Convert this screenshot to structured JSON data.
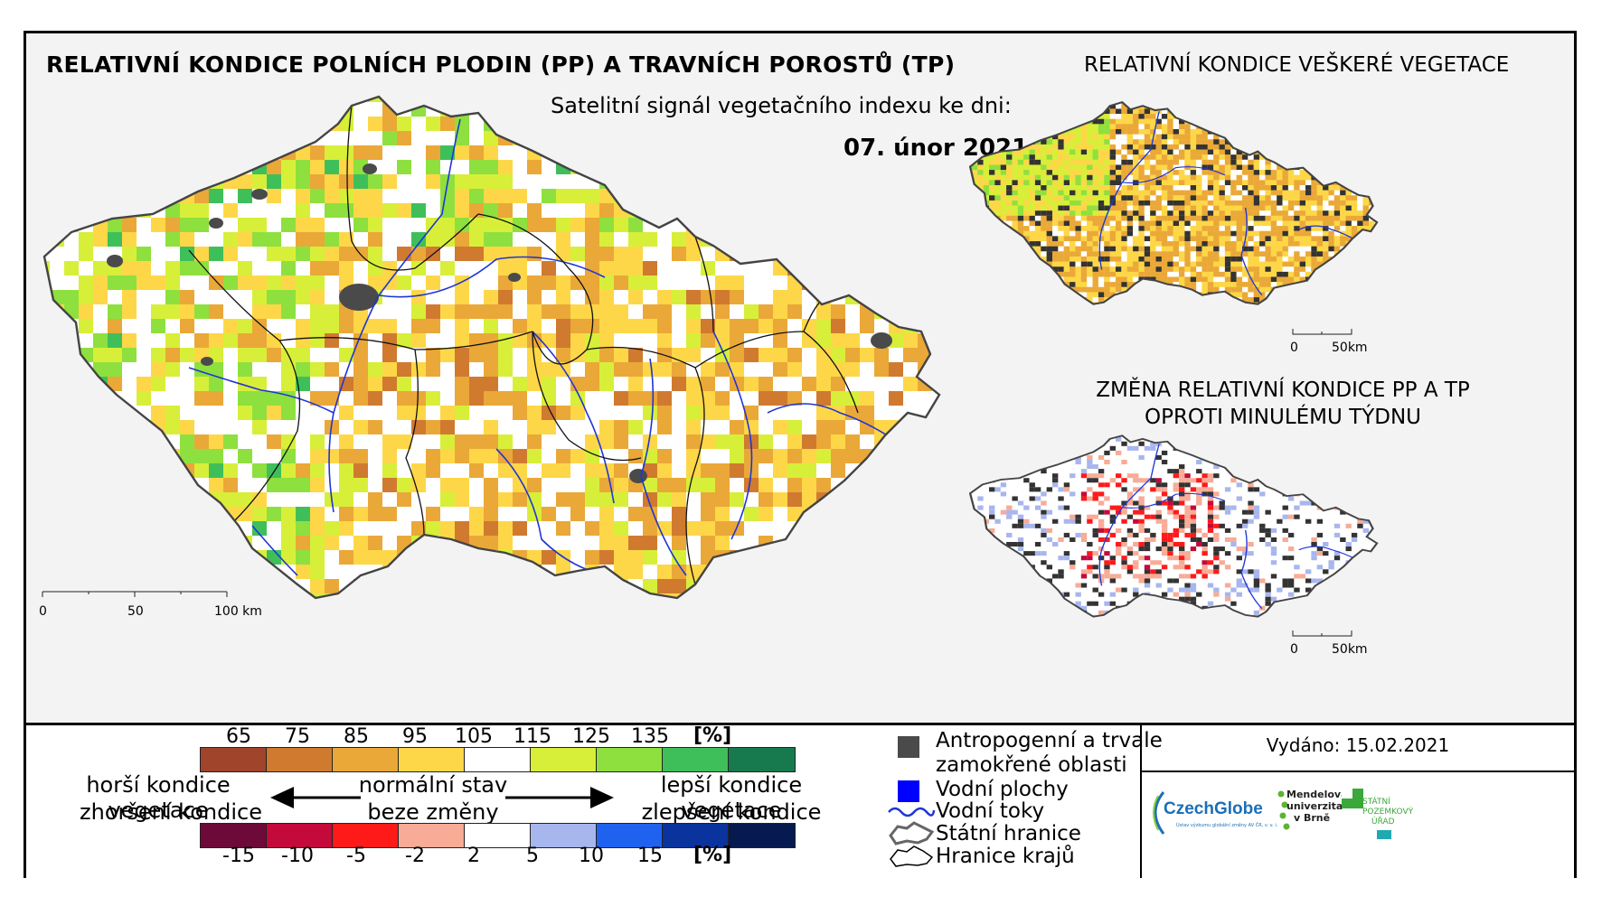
{
  "header": {
    "main_title": "RELATIVNÍ KONDICE POLNÍCH PLODIN (PP) A TRAVNÍCH POROSTŮ (TP)",
    "subtitle": "Satelitní signál vegetačního indexu ke dni:",
    "date": "07. únor 2021",
    "right_title": "RELATIVNÍ KONDICE VEŠKERÉ VEGETACE",
    "change_title_line1": "ZMĚNA RELATIVNÍ KONDICE PP A TP",
    "change_title_line2": "OPROTI MINULÉMU TÝDNU"
  },
  "main_map": {
    "scale": {
      "zero": "0",
      "mid": "50",
      "end": "100 km"
    }
  },
  "small_maps": {
    "scale": {
      "zero": "0",
      "end": "50km"
    }
  },
  "legend": {
    "condition_scale": {
      "ticks": [
        "65",
        "75",
        "85",
        "95",
        "105",
        "115",
        "125",
        "135"
      ],
      "unit": "[%]",
      "colors": [
        "#a0442c",
        "#d07a30",
        "#eaa838",
        "#fdd748",
        "#ffffff",
        "#d7ef39",
        "#8ee03e",
        "#3fbf5a",
        "#177a4e"
      ]
    },
    "change_scale": {
      "ticks": [
        "-15",
        "-10",
        "-5",
        "-2",
        "2",
        "5",
        "10",
        "15"
      ],
      "unit": "[%]",
      "colors": [
        "#6e0a3a",
        "#c40a3a",
        "#ff1a1a",
        "#f8ab96",
        "#ffffff",
        "#a8b6ee",
        "#1f62f0",
        "#0b339e",
        "#071a4f"
      ]
    },
    "captions": {
      "worse_1": "horší kondice vegetace",
      "worse_2": "zhoršení kondice",
      "normal_1": "normální stav",
      "normal_2": "beze změny",
      "better_1": "lepší kondice vegetace",
      "better_2": "zlepšení kondice"
    },
    "keys": {
      "anthropogenic_1": "Antropogenní a trvale",
      "anthropogenic_2": "zamokřené oblasti",
      "water_bodies": "Vodní plochy",
      "water_streams": "Vodní toky",
      "state_border": "Státní hranice",
      "region_border": "Hranice krajů"
    },
    "key_colors": {
      "anthropogenic": "#4a4a4a",
      "water": "#0000ff",
      "stream": "#1f35d6"
    }
  },
  "issued": "Vydáno: 15.02.2021",
  "logos": {
    "czechglobe": "CzechGlobe",
    "czechglobe_sub": "Ústav výzkumu globální změny AV ČR, v. v. i.",
    "mendel_1": "Mendelova",
    "mendel_2": "univerzita",
    "mendel_3": "v Brně",
    "spu_1": "STÁTNÍ",
    "spu_2": "POZEMKOVÝ",
    "spu_3": "ÚŘAD"
  }
}
